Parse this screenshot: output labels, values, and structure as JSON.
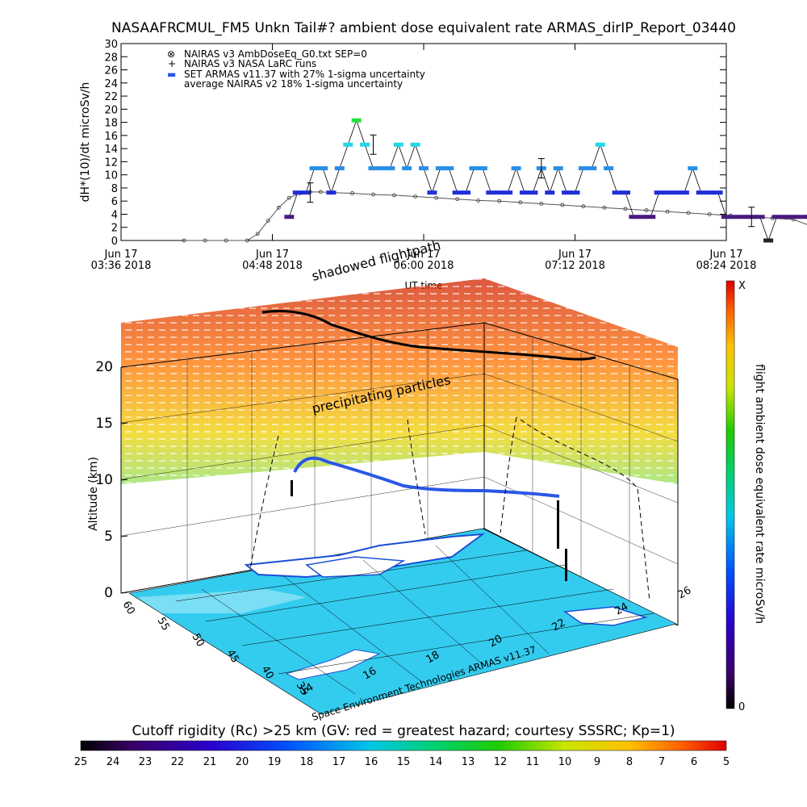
{
  "chart_data": [
    {
      "type": "scatter",
      "title": "NASAAFRCMUL_FM5 Unkn Tail#? ambient dose equivalent rate ARMAS_dirIP_Report_03440",
      "ylabel": "dH*(10)/dt microSv/h",
      "xlabel": "UT time",
      "ylim": [
        0,
        30
      ],
      "yticks": [
        "0",
        "2",
        "4",
        "6",
        "8",
        "10",
        "12",
        "14",
        "16",
        "18",
        "20",
        "22",
        "24",
        "26",
        "28",
        "30"
      ],
      "xticks": [
        {
          "day": "Jun 17",
          "time": "03:36 2018"
        },
        {
          "day": "Jun 17",
          "time": "04:48 2018"
        },
        {
          "day": "Jun 17",
          "time": "06:00 2018"
        },
        {
          "day": "Jun 17",
          "time": "07:12 2018"
        },
        {
          "day": "Jun 17",
          "time": "08:24 2018"
        }
      ],
      "legend": [
        {
          "symbol": "⊗",
          "label": "NAIRAS v3 AmbDoseEq_G0.txt SEP=0"
        },
        {
          "symbol": "+",
          "label": "NAIRAS v3 NASA LaRC runs"
        },
        {
          "symbol": "▬",
          "label": "SET ARMAS v11.37 with 27% 1-sigma uncertainty"
        },
        {
          "symbol": "",
          "label": "average NAIRAS v2 18% 1-sigma uncertainty"
        }
      ],
      "legend_position": "top-left",
      "series": [
        {
          "name": "SET ARMAS v11.37 with 27% 1-sigma uncertainty",
          "x_minutes_from_0336": [
            80,
            84,
            88,
            92,
            96,
            100,
            104,
            108,
            112,
            116,
            120,
            124,
            128,
            132,
            136,
            140,
            144,
            148,
            152,
            156,
            160,
            164,
            168,
            172,
            176,
            180,
            184,
            188,
            192,
            196,
            200,
            204,
            208,
            212,
            216,
            220,
            224,
            228,
            232,
            236,
            240,
            244,
            248,
            252,
            256,
            260,
            264,
            268,
            272,
            276,
            280,
            284,
            288,
            292,
            296,
            300,
            304,
            308,
            312,
            316,
            320,
            324,
            328,
            332,
            336,
            340,
            344,
            348
          ],
          "values": [
            3.6,
            7.3,
            7.3,
            11,
            11,
            7.3,
            11,
            14.6,
            18.3,
            14.6,
            11,
            11,
            11,
            14.6,
            11,
            14.6,
            11,
            7.3,
            11,
            11,
            7.3,
            7.3,
            11,
            11,
            7.3,
            7.3,
            7.3,
            11,
            7.3,
            7.3,
            11,
            7.3,
            11,
            7.3,
            7.3,
            11,
            11,
            14.6,
            11,
            7.3,
            7.3,
            3.6,
            3.6,
            3.6,
            7.3,
            7.3,
            7.3,
            7.3,
            11,
            7.3,
            7.3,
            7.3,
            3.6,
            3.6,
            3.6,
            3.6,
            3.6,
            0,
            3.6,
            3.6,
            3.6,
            3.6,
            3.6,
            3.6,
            3.6,
            3.6,
            3.6,
            3.6
          ]
        },
        {
          "name": "NAIRAS v3 AmbDoseEq_G0.txt SEP=0",
          "x_minutes_from_0336": [
            30,
            40,
            50,
            60,
            65,
            70,
            75,
            80,
            85,
            90,
            95,
            100,
            110,
            120,
            130,
            140,
            150,
            160,
            170,
            180,
            190,
            200,
            210,
            220,
            230,
            240,
            250,
            260,
            270,
            280,
            290,
            300,
            310,
            320,
            330,
            335,
            340
          ],
          "values": [
            0,
            0,
            0,
            0,
            1,
            3,
            5,
            6.5,
            7.2,
            7.4,
            7.4,
            7.3,
            7.2,
            7,
            6.9,
            6.7,
            6.5,
            6.3,
            6.1,
            6,
            5.8,
            5.6,
            5.4,
            5.2,
            5,
            4.8,
            4.6,
            4.4,
            4.2,
            4,
            3.8,
            3.6,
            3.4,
            3.2,
            2,
            1,
            0
          ]
        }
      ],
      "colorbar": {
        "label": "flight ambient dose equivalent rate microSv/h",
        "top_label": "X",
        "bottom_label": "0"
      }
    },
    {
      "type": "3d-flight-track",
      "annotations": [
        "shadowed flightpath",
        "precipitating particles"
      ],
      "zlabel": "Altitude (km)",
      "zticks": [
        "0",
        "5",
        "10",
        "15",
        "20"
      ],
      "lat_ticks": [
        "60",
        "55",
        "50",
        "45",
        "40",
        "35"
      ],
      "lon_ticks": [
        "14",
        "16",
        "18",
        "20",
        "22",
        "24",
        "26"
      ],
      "credit": "Space Environment Technologies ARMAS v11.37",
      "bottom_colorbar": {
        "title": "Cutoff rigidity (Rc) >25 km (GV: red = greatest hazard; courtesy SSSRC; Kp=1)",
        "ticks": [
          "25",
          "24",
          "23",
          "22",
          "21",
          "20",
          "19",
          "18",
          "17",
          "16",
          "15",
          "14",
          "13",
          "12",
          "11",
          "10",
          "9",
          "8",
          "7",
          "6",
          "5"
        ]
      }
    }
  ],
  "colors": {
    "armas": "#2a57e6",
    "nairas": "#333333",
    "map_ocean": "#33ccee",
    "map_land": "#ffffff",
    "coast": "#1b4fd6"
  }
}
